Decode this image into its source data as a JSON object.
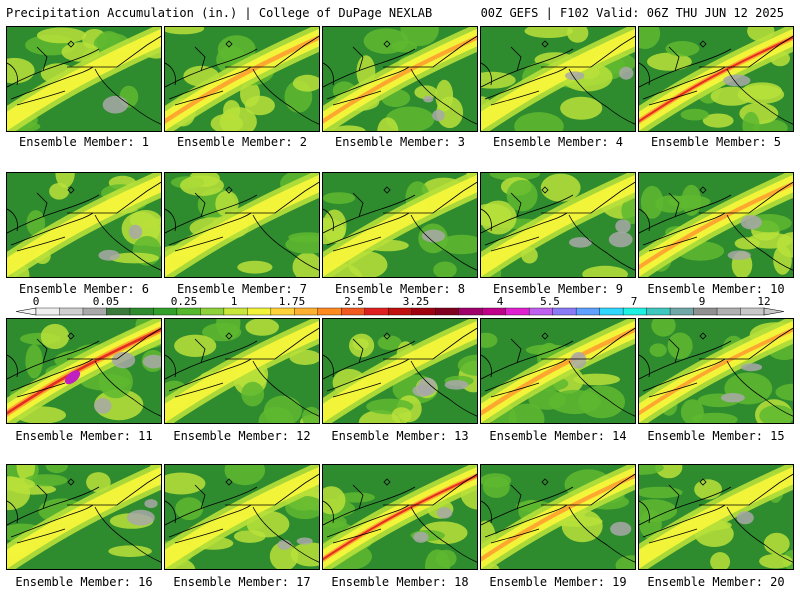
{
  "header": {
    "left": "Precipitation Accumulation (in.) | College of DuPage NEXLAB",
    "right": "00Z GEFS | F102 Valid: 06Z THU JUN 12 2025"
  },
  "caption_prefix": "Ensemble Member: ",
  "members": [
    {
      "label": "Ensemble Member: 1",
      "intensity": 0.45
    },
    {
      "label": "Ensemble Member: 2",
      "intensity": 0.65
    },
    {
      "label": "Ensemble Member: 3",
      "intensity": 0.6
    },
    {
      "label": "Ensemble Member: 4",
      "intensity": 0.4
    },
    {
      "label": "Ensemble Member: 5",
      "intensity": 0.7
    },
    {
      "label": "Ensemble Member: 6",
      "intensity": 0.25
    },
    {
      "label": "Ensemble Member: 7",
      "intensity": 0.25
    },
    {
      "label": "Ensemble Member: 8",
      "intensity": 0.45
    },
    {
      "label": "Ensemble Member: 9",
      "intensity": 0.35
    },
    {
      "label": "Ensemble Member: 10",
      "intensity": 0.6
    },
    {
      "label": "Ensemble Member: 11",
      "intensity": 0.9
    },
    {
      "label": "Ensemble Member: 12",
      "intensity": 0.5
    },
    {
      "label": "Ensemble Member: 13",
      "intensity": 0.5
    },
    {
      "label": "Ensemble Member: 14",
      "intensity": 0.65
    },
    {
      "label": "Ensemble Member: 15",
      "intensity": 0.55
    },
    {
      "label": "Ensemble Member: 16",
      "intensity": 0.4
    },
    {
      "label": "Ensemble Member: 17",
      "intensity": 0.4
    },
    {
      "label": "Ensemble Member: 18",
      "intensity": 0.7
    },
    {
      "label": "Ensemble Member: 19",
      "intensity": 0.6
    },
    {
      "label": "Ensemble Member: 20",
      "intensity": 0.5
    }
  ],
  "colorbar": {
    "tick_labels": [
      "0",
      "0.05",
      "0.25",
      "1",
      "1.75",
      "2.5",
      "3.25",
      "4",
      "5.5",
      "7",
      "9",
      "12"
    ],
    "colors": [
      "#eeeeee",
      "#cfcfcf",
      "#a9a9a9",
      "#3c7a3c",
      "#2e8b2e",
      "#33a02c",
      "#55b82d",
      "#8fd13a",
      "#c8e63c",
      "#f2f23a",
      "#ffd23a",
      "#ffb030",
      "#ff8a20",
      "#f05a20",
      "#e02020",
      "#c01010",
      "#a00010",
      "#800020",
      "#a0006a",
      "#c0008a",
      "#e020d0",
      "#c060f0",
      "#8a7af5",
      "#60a0ff",
      "#30d8ff",
      "#20f0e0",
      "#40c8c0",
      "#70a8a8",
      "#909090",
      "#b0b0b0",
      "#c8c8c8"
    ]
  },
  "legend_colors": {
    "background_green": "#2e8b2e",
    "light_green": "#5fb82f",
    "yellow_green": "#b8e03a",
    "yellow": "#f5f53a",
    "orange": "#ffa030",
    "red": "#e02020",
    "magenta": "#c020c0",
    "gray": "#a8a8a8"
  }
}
